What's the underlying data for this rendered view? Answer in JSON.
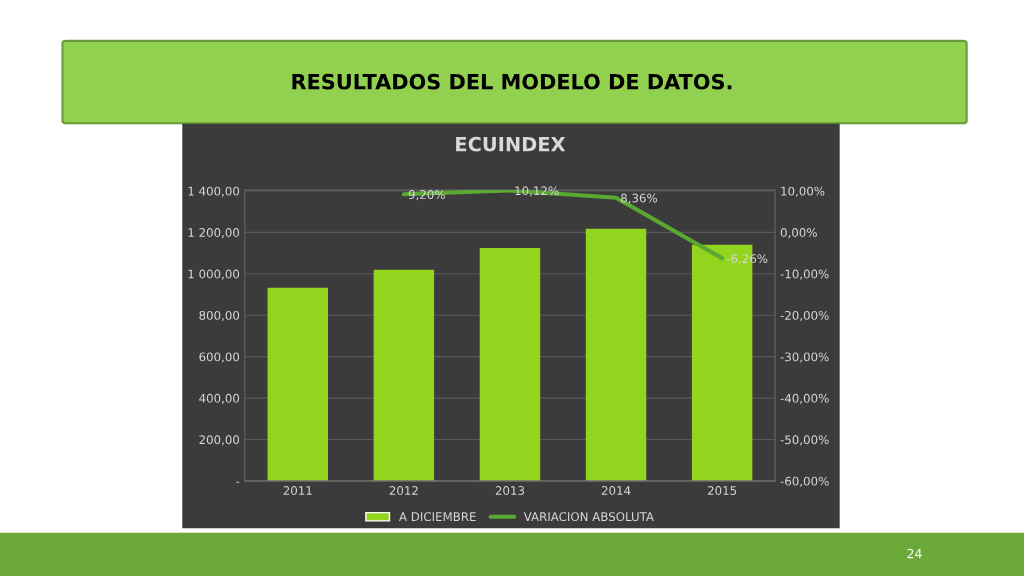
{
  "chart_data": {
    "type": "bar",
    "title": "ECUINDEX",
    "categories": [
      "2011",
      "2012",
      "2013",
      "2014",
      "2015"
    ],
    "series": [
      {
        "name": "A DICIEMBRE",
        "color": "#92d41e",
        "values": [
          932,
          1020,
          1125,
          1217,
          1140
        ]
      },
      {
        "name": "VARIACION ABSOLUTA",
        "type": "line",
        "axis": "y2",
        "color": "#5aa832",
        "values": [
          null,
          9.2,
          10.12,
          8.36,
          -6.26
        ],
        "value_labels": [
          null,
          "9,20%",
          "10,12%",
          "8,36%",
          "-6,26%"
        ]
      }
    ],
    "ylim": [
      0,
      1404
    ],
    "yticks": [
      {
        "value": 0,
        "label": "-"
      },
      {
        "value": 200,
        "label": "200,00"
      },
      {
        "value": 400,
        "label": "400,00"
      },
      {
        "value": 600,
        "label": "600,00"
      },
      {
        "value": 800,
        "label": "800,00"
      },
      {
        "value": 1000,
        "label": "1 000,00"
      },
      {
        "value": 1200,
        "label": "1 200,00"
      },
      {
        "value": 1400,
        "label": "1 400,00"
      }
    ],
    "y2lim": [
      -60,
      10.2
    ],
    "y2ticks": [
      {
        "value": -60,
        "label": "-60,00%"
      },
      {
        "value": -50,
        "label": "-50,00%"
      },
      {
        "value": -40,
        "label": "-40,00%"
      },
      {
        "value": -30,
        "label": "-30,00%"
      },
      {
        "value": -20,
        "label": "-20,00%"
      },
      {
        "value": -10,
        "label": "-10,00%"
      },
      {
        "value": 0,
        "label": "0,00%"
      },
      {
        "value": 10,
        "label": "10,00%"
      }
    ],
    "grid": "y",
    "legend": "bottom",
    "marker": "none",
    "line_style": "solid",
    "annotations": [
      "RESULTADOS DEL MODELO DE DATOS.",
      "24"
    ]
  }
}
